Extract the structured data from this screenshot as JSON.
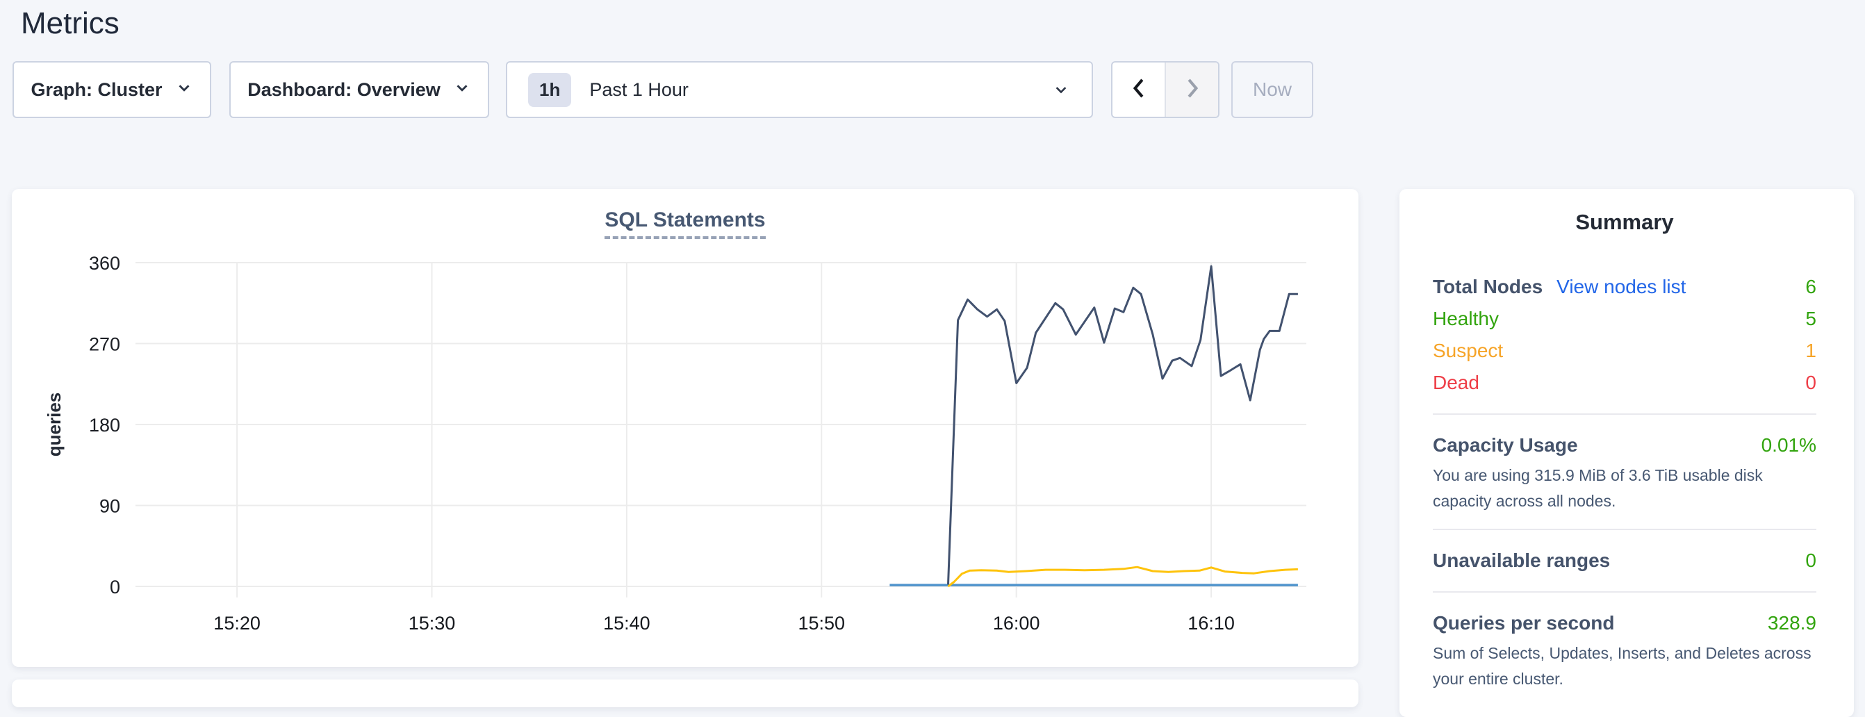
{
  "page": {
    "title": "Metrics"
  },
  "toolbar": {
    "graph_dropdown": {
      "label": "Graph: Cluster"
    },
    "dashboard_dropdown": {
      "label": "Dashboard: Overview"
    },
    "time_picker": {
      "badge": "1h",
      "label": "Past 1 Hour"
    },
    "now_button": {
      "label": "Now"
    }
  },
  "colors": {
    "green": "#32a40e",
    "orange": "#f6a428",
    "red": "#ee3e47",
    "link_blue": "#2266e8",
    "navy_series": "#42526f",
    "yellow_series": "#fec30c",
    "blue_series": "#4f94cc"
  },
  "summary": {
    "title": "Summary",
    "total_nodes": {
      "label": "Total Nodes",
      "link": "View nodes list",
      "value": "6"
    },
    "healthy": {
      "label": "Healthy",
      "value": "5"
    },
    "suspect": {
      "label": "Suspect",
      "value": "1"
    },
    "dead": {
      "label": "Dead",
      "value": "0"
    },
    "capacity": {
      "label": "Capacity Usage",
      "value": "0.01%",
      "desc": "You are using 315.9 MiB of 3.6 TiB usable disk capacity across all nodes."
    },
    "unavailable": {
      "label": "Unavailable ranges",
      "value": "0"
    },
    "qps": {
      "label": "Queries per second",
      "value": "328.9",
      "desc": "Sum of Selects, Updates, Inserts, and Deletes across your entire cluster."
    }
  },
  "chart_data": {
    "type": "line",
    "title": "SQL Statements",
    "ylabel": "queries",
    "ylim": [
      0,
      360
    ],
    "yticks": [
      0,
      90,
      180,
      270,
      360
    ],
    "x_axis_note": "t = minutes after 15:20",
    "x_range_minutes": [
      -5.21,
      54.9
    ],
    "xticks": [
      {
        "t": 0,
        "label": "15:20"
      },
      {
        "t": 10,
        "label": "15:30"
      },
      {
        "t": 20,
        "label": "15:40"
      },
      {
        "t": 30,
        "label": "15:50"
      },
      {
        "t": 40,
        "label": "16:00"
      },
      {
        "t": 50,
        "label": "16:10"
      }
    ],
    "grid": true,
    "legend": "none",
    "series": [
      {
        "name": "blue",
        "color": "#4f94cc",
        "width": 3.5,
        "points": [
          [
            33.5,
            1.5
          ],
          [
            54.45,
            1.5
          ]
        ]
      },
      {
        "name": "yellow",
        "color": "#fec30c",
        "width": 3,
        "points": [
          [
            36.5,
            0
          ],
          [
            36.8,
            5
          ],
          [
            37.2,
            14
          ],
          [
            37.6,
            17.5
          ],
          [
            38.2,
            18
          ],
          [
            39.0,
            17.5
          ],
          [
            39.6,
            16
          ],
          [
            40.5,
            17
          ],
          [
            41.5,
            18.5
          ],
          [
            42.5,
            18.5
          ],
          [
            43.5,
            18
          ],
          [
            44.5,
            18.5
          ],
          [
            45.5,
            19.5
          ],
          [
            46.2,
            21.5
          ],
          [
            47.0,
            17
          ],
          [
            47.8,
            16
          ],
          [
            48.6,
            17
          ],
          [
            49.4,
            17.5
          ],
          [
            50.0,
            21
          ],
          [
            50.7,
            16.5
          ],
          [
            51.6,
            15
          ],
          [
            52.2,
            14.5
          ],
          [
            53.0,
            17
          ],
          [
            53.8,
            18.5
          ],
          [
            54.45,
            19
          ]
        ]
      },
      {
        "name": "navy",
        "color": "#42526f",
        "width": 3,
        "points": [
          [
            36.5,
            2
          ],
          [
            37.0,
            296
          ],
          [
            37.5,
            319
          ],
          [
            38.0,
            308
          ],
          [
            38.5,
            300
          ],
          [
            39.0,
            308
          ],
          [
            39.4,
            295
          ],
          [
            40.0,
            226
          ],
          [
            40.55,
            243
          ],
          [
            41.0,
            282
          ],
          [
            42.0,
            315
          ],
          [
            42.4,
            308
          ],
          [
            43.05,
            280
          ],
          [
            44.0,
            310
          ],
          [
            44.5,
            271
          ],
          [
            45.05,
            309
          ],
          [
            45.5,
            305
          ],
          [
            46.0,
            332
          ],
          [
            46.4,
            325
          ],
          [
            47.0,
            280
          ],
          [
            47.5,
            231
          ],
          [
            48.0,
            251
          ],
          [
            48.4,
            254
          ],
          [
            49.0,
            245
          ],
          [
            49.45,
            274
          ],
          [
            50.0,
            356
          ],
          [
            50.5,
            234
          ],
          [
            50.9,
            239
          ],
          [
            51.5,
            247
          ],
          [
            52.0,
            207
          ],
          [
            52.5,
            263
          ],
          [
            52.7,
            275
          ],
          [
            53.0,
            284
          ],
          [
            53.5,
            284
          ],
          [
            54.0,
            325
          ],
          [
            54.45,
            325
          ]
        ]
      }
    ]
  }
}
